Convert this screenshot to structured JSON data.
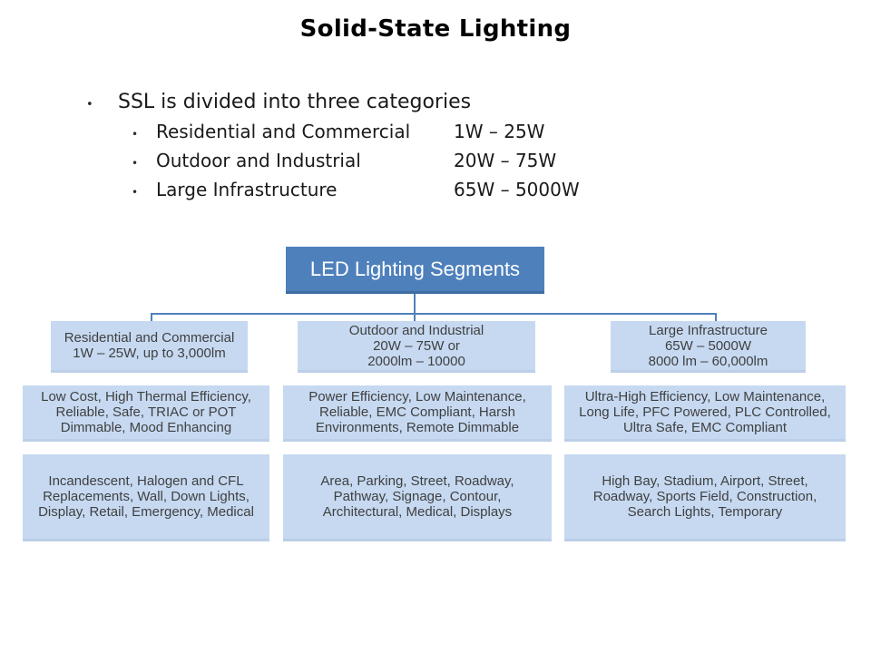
{
  "title": "Solid-State Lighting",
  "bullets": {
    "marker": "•",
    "main": "SSL is divided into three categories",
    "items": [
      {
        "label": "Residential and Commercial",
        "range": "1W – 25W"
      },
      {
        "label": "Outdoor and Industrial",
        "range": "20W – 75W"
      },
      {
        "label": "Large Infrastructure",
        "range": "65W – 5000W"
      }
    ]
  },
  "diagram": {
    "root": "LED Lighting Segments",
    "columns": [
      {
        "segment": "Residential and Commercial\n1W – 25W, up to 3,000lm",
        "features": "Low Cost, High Thermal Efficiency,\nReliable, Safe, TRIAC or POT\nDimmable, Mood Enhancing",
        "applications": "Incandescent, Halogen and CFL\nReplacements, Wall, Down Lights,\nDisplay, Retail, Emergency, Medical"
      },
      {
        "segment": "Outdoor and Industrial\n20W – 75W or\n2000lm – 10000",
        "features": "Power Efficiency, Low Maintenance,\nReliable, EMC Compliant, Harsh\nEnvironments, Remote Dimmable",
        "applications": "Area, Parking, Street, Roadway,\nPathway, Signage, Contour,\nArchitectural, Medical, Displays"
      },
      {
        "segment": "Large Infrastructure\n65W – 5000W\n8000 lm – 60,000lm",
        "features": "Ultra-High Efficiency, Low Maintenance,\nLong Life, PFC Powered, PLC Controlled,\nUltra Safe, EMC Compliant",
        "applications": "High Bay, Stadium, Airport, Street,\nRoadway, Sports Field, Construction,\nSearch Lights, Temporary"
      }
    ],
    "colors": {
      "root_bg": "#4e80bc",
      "child_bg": "#c6d9f1",
      "connector": "#4f81bd",
      "root_text": "#ffffff",
      "child_text": "#404040"
    }
  }
}
